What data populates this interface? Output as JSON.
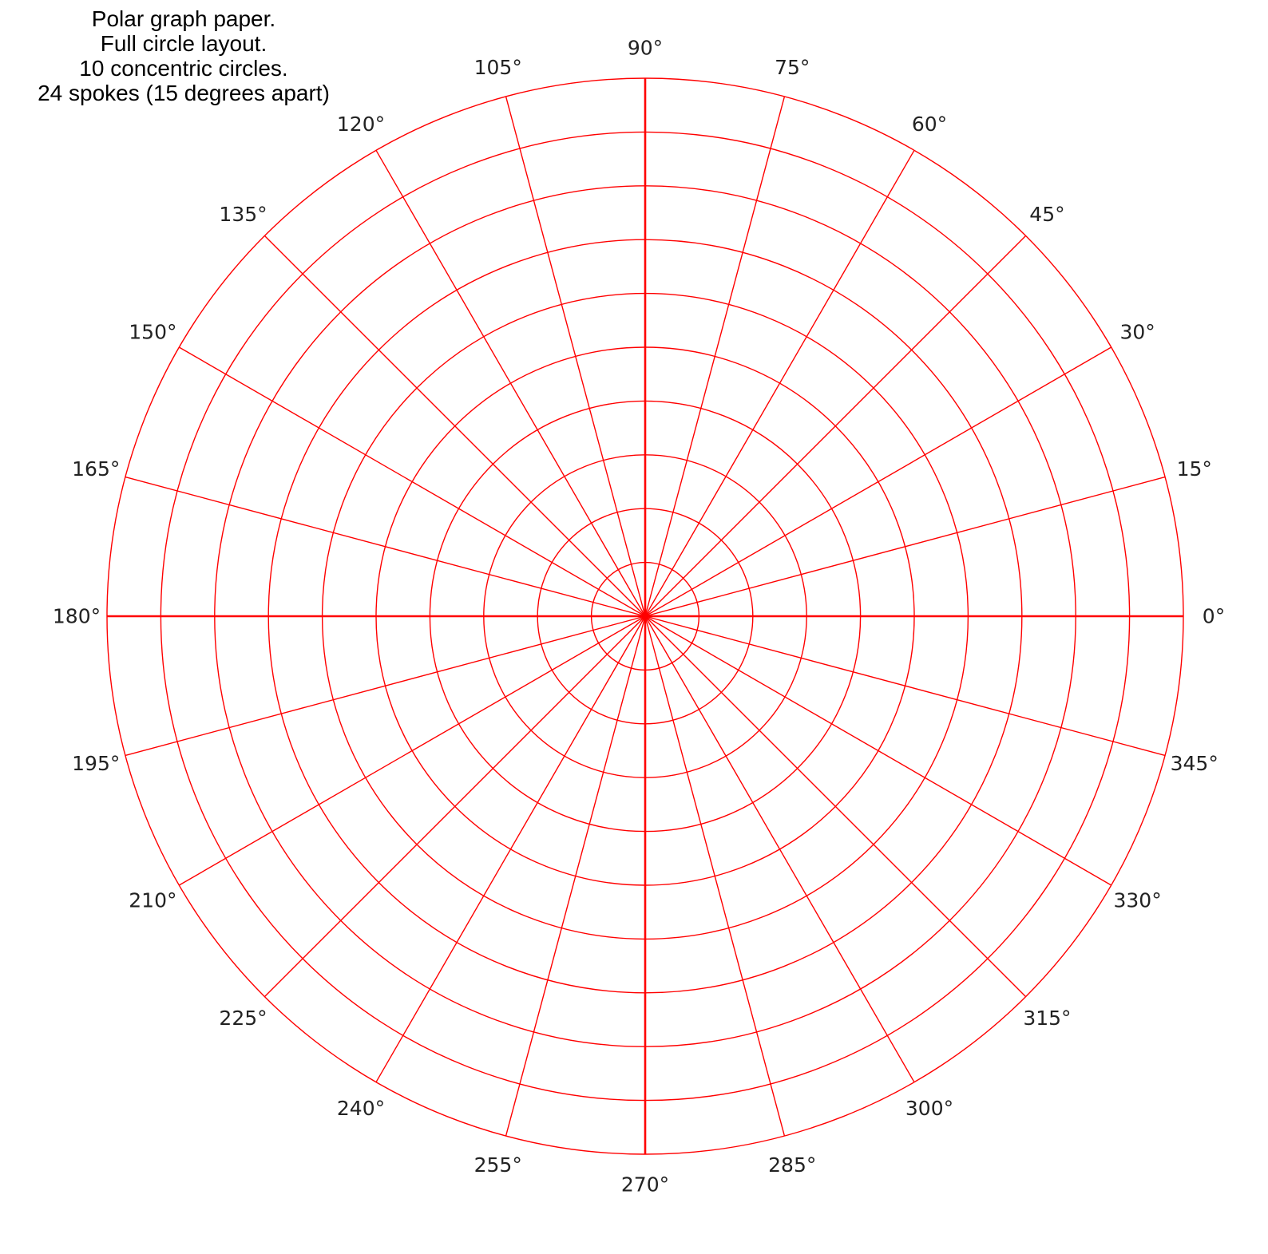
{
  "caption": {
    "lines": [
      "Polar graph paper.",
      "Full circle layout.",
      "10 concentric circles.",
      "24 spokes (15 degrees apart)"
    ]
  },
  "grid": {
    "line_color": "#ff0000",
    "label_color": "#222222",
    "circle_count": 10,
    "spoke_count": 24,
    "spoke_step_degrees": 15,
    "angle_labels": [
      "0°",
      "15°",
      "30°",
      "45°",
      "60°",
      "75°",
      "90°",
      "105°",
      "120°",
      "135°",
      "150°",
      "165°",
      "180°",
      "195°",
      "210°",
      "225°",
      "240°",
      "255°",
      "270°",
      "285°",
      "300°",
      "315°",
      "330°",
      "345°"
    ]
  }
}
